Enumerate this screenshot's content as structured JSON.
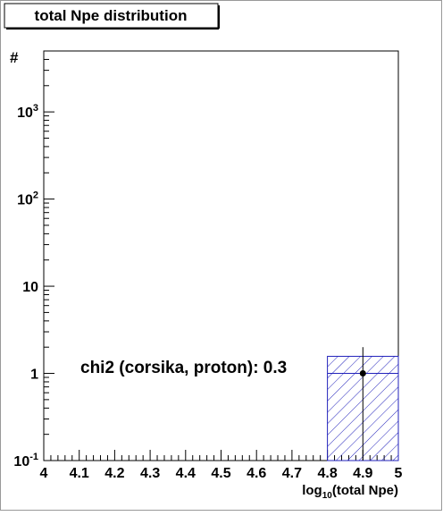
{
  "chart_data": {
    "type": "hist-with-points",
    "title": "total Npe distribution",
    "y_label": "#",
    "x_label": {
      "base": "log",
      "sub": "10",
      "rest": "(total Npe)"
    },
    "annotation": "chi2 (corsika, proton): 0.3",
    "xlim": [
      4,
      5
    ],
    "xticks": [
      4,
      4.1,
      4.2,
      4.3,
      4.4,
      4.5,
      4.6,
      4.7,
      4.8,
      4.9,
      5
    ],
    "ylim": [
      0.1,
      5000
    ],
    "log_y": true,
    "yticks": [
      {
        "value": 0.1,
        "label": "10",
        "exponent": "-1"
      },
      {
        "value": 1,
        "label": "1"
      },
      {
        "value": 10,
        "label": "10"
      },
      {
        "value": 100,
        "label": "10",
        "exponent": "2"
      },
      {
        "value": 1000,
        "label": "10",
        "exponent": "3"
      }
    ],
    "histogram": {
      "color": "#2222bb",
      "bins": [
        4.8,
        5.0
      ],
      "counts": [
        1
      ],
      "errors": [
        0.57
      ]
    },
    "points": {
      "color": "#000000",
      "x": [
        4.9
      ],
      "y": [
        1
      ],
      "yerr": [
        1
      ]
    }
  }
}
